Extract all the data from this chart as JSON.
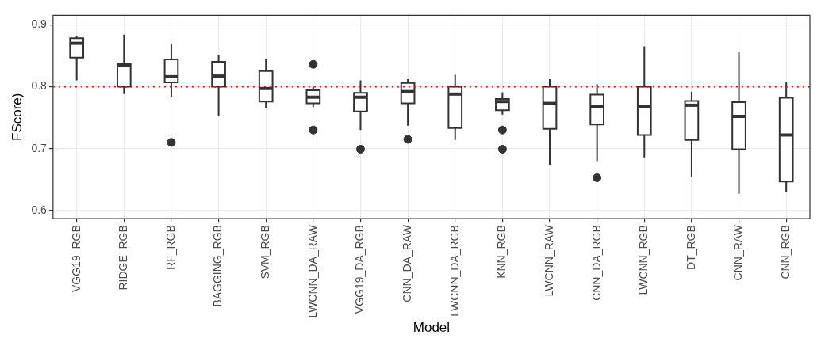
{
  "chart_data": {
    "type": "box",
    "xlabel": "Model",
    "ylabel": "FScore)",
    "categories": [
      "VGG19_RGB",
      "RIDGE_RGB",
      "RF_RGB",
      "BAGGING_RGB",
      "SVM_RGB",
      "LWCNN_DA_RAW",
      "VGG19_DA_RGB",
      "CNN_DA_RAW",
      "LWCNN_DA_RGB",
      "KNN_RGB",
      "LWCNN_RAW",
      "CNN_DA_RGB",
      "LWCNN_RGB",
      "DT_RGB",
      "CNN_RAW",
      "CNN_RGB"
    ],
    "boxes": [
      {
        "low": 0.81,
        "q1": 0.847,
        "median": 0.87,
        "q3": 0.878,
        "high": 0.882
      },
      {
        "low": 0.788,
        "q1": 0.8,
        "median": 0.834,
        "q3": 0.837,
        "high": 0.884
      },
      {
        "low": 0.784,
        "q1": 0.807,
        "median": 0.816,
        "q3": 0.844,
        "high": 0.869,
        "outliers": [
          0.71
        ]
      },
      {
        "low": 0.753,
        "q1": 0.8,
        "median": 0.817,
        "q3": 0.84,
        "high": 0.851
      },
      {
        "low": 0.766,
        "q1": 0.776,
        "median": 0.797,
        "q3": 0.825,
        "high": 0.845
      },
      {
        "low": 0.767,
        "q1": 0.773,
        "median": 0.783,
        "q3": 0.794,
        "high": 0.8,
        "outliers": [
          0.836,
          0.73
        ]
      },
      {
        "low": 0.73,
        "q1": 0.76,
        "median": 0.783,
        "q3": 0.79,
        "high": 0.81,
        "outliers": [
          0.699
        ]
      },
      {
        "low": 0.737,
        "q1": 0.773,
        "median": 0.792,
        "q3": 0.806,
        "high": 0.812,
        "outliers": [
          0.715
        ]
      },
      {
        "low": 0.714,
        "q1": 0.733,
        "median": 0.788,
        "q3": 0.8,
        "high": 0.819
      },
      {
        "low": 0.755,
        "q1": 0.762,
        "median": 0.776,
        "q3": 0.78,
        "high": 0.791,
        "outliers": [
          0.73,
          0.699
        ]
      },
      {
        "low": 0.674,
        "q1": 0.732,
        "median": 0.773,
        "q3": 0.8,
        "high": 0.812
      },
      {
        "low": 0.68,
        "q1": 0.739,
        "median": 0.768,
        "q3": 0.787,
        "high": 0.804,
        "outliers": [
          0.653
        ]
      },
      {
        "low": 0.686,
        "q1": 0.722,
        "median": 0.768,
        "q3": 0.8,
        "high": 0.865
      },
      {
        "low": 0.654,
        "q1": 0.714,
        "median": 0.77,
        "q3": 0.777,
        "high": 0.792
      },
      {
        "low": 0.627,
        "q1": 0.699,
        "median": 0.752,
        "q3": 0.775,
        "high": 0.855
      },
      {
        "low": 0.63,
        "q1": 0.647,
        "median": 0.722,
        "q3": 0.782,
        "high": 0.807
      }
    ],
    "color": "#333333",
    "ylim": [
      0.587,
      0.915
    ],
    "yticks": [
      0.6,
      0.7,
      0.8,
      0.9
    ],
    "ref_lines": [
      {
        "axis": "y",
        "value": 0.8,
        "color": "#ff0000",
        "line_style": "dotted"
      }
    ],
    "grid": true,
    "legend": false
  }
}
